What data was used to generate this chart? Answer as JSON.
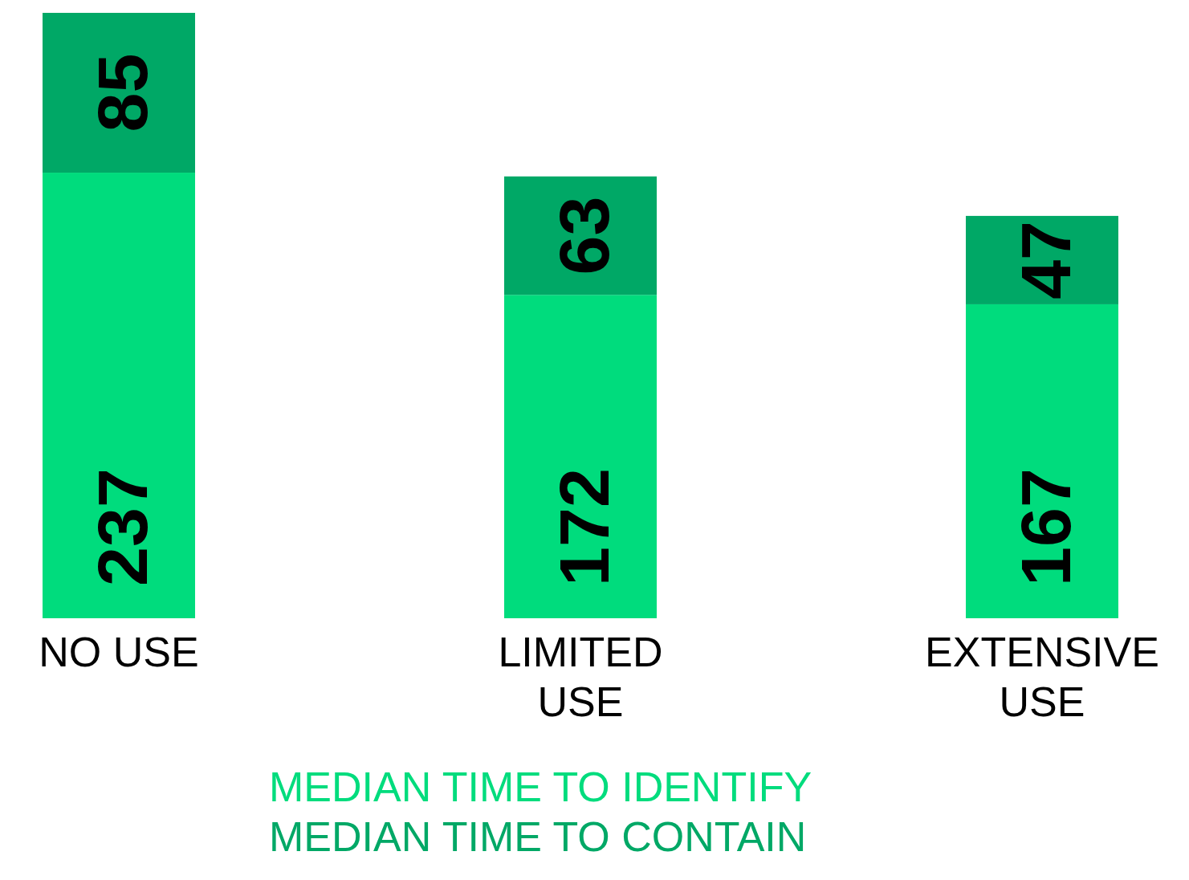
{
  "chart_data": {
    "type": "bar",
    "stacked": true,
    "categories": [
      "NO USE",
      "LIMITED USE",
      "EXTENSIVE USE"
    ],
    "series": [
      {
        "name": "MEDIAN TIME TO IDENTIFY",
        "color": "#00dc7d",
        "values": [
          237,
          172,
          167
        ]
      },
      {
        "name": "MEDIAN TIME TO CONTAIN",
        "color": "#00a866",
        "values": [
          85,
          63,
          47
        ]
      }
    ],
    "data_labels": true,
    "legend": "bottom"
  }
}
